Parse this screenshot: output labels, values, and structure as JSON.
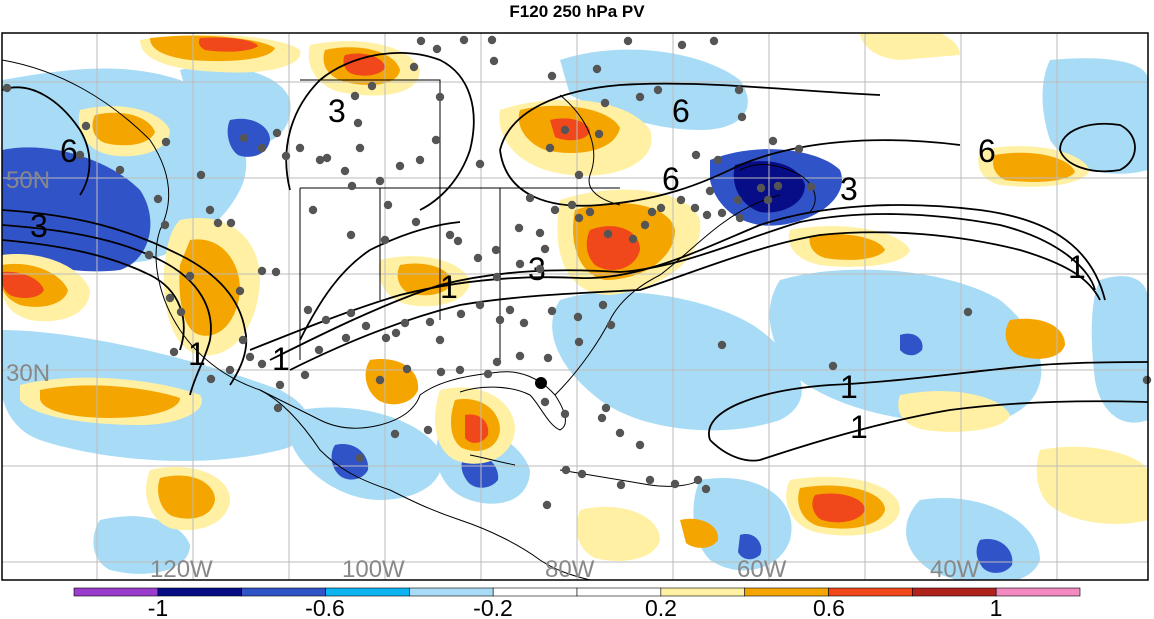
{
  "title": "F120 250 hPa PV",
  "lat_labels": [
    "50N",
    "30N"
  ],
  "lon_labels": [
    "120W",
    "100W",
    "80W",
    "60W",
    "40W"
  ],
  "contour_labels": [
    "6",
    "6",
    "6",
    "6",
    "3",
    "3",
    "3",
    "3",
    "1",
    "1",
    "1",
    "1",
    "1"
  ],
  "colorbar": {
    "ticks": [
      "-1",
      "-0.6",
      "-0.2",
      "0.2",
      "0.6",
      "1"
    ],
    "colors": [
      "#9a3dcb",
      "#070d86",
      "#3153c8",
      "#0db3f0",
      "#a8dcf6",
      "#ffffff",
      "#ffffff",
      "#fff0a3",
      "#f5a500",
      "#f0481a",
      "#b0221c",
      "#f38bc0"
    ]
  }
}
